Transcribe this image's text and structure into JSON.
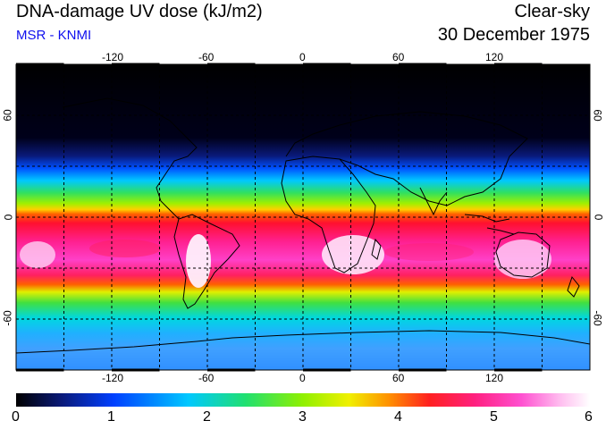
{
  "header": {
    "title": "DNA-damage UV dose (kJ/m2)",
    "source": "MSR - KNMI",
    "condition": "Clear-sky",
    "date": "30 December 1975"
  },
  "map": {
    "projection": "equirectangular",
    "lon_range": [
      -180,
      180
    ],
    "lat_range": [
      -90,
      90
    ],
    "lon_ticks": [
      "-120",
      "-60",
      "0",
      "60",
      "120"
    ],
    "lat_ticks_left": [
      "60",
      "0",
      "-60"
    ],
    "lat_ticks_right": [
      "60",
      "0",
      "-60"
    ],
    "gridlines": "dashed, every 30 degrees"
  },
  "colorbar": {
    "min": 0,
    "max": 6,
    "labels": [
      "0",
      "1",
      "2",
      "3",
      "4",
      "5",
      "6"
    ],
    "colors": [
      "#000000",
      "#0a1a7a",
      "#0040ff",
      "#00c8ff",
      "#20e070",
      "#90f000",
      "#f0f000",
      "#ff9000",
      "#ff2020",
      "#ff2080",
      "#ff50d0",
      "#ffc0f0",
      "#ffffff"
    ]
  }
}
